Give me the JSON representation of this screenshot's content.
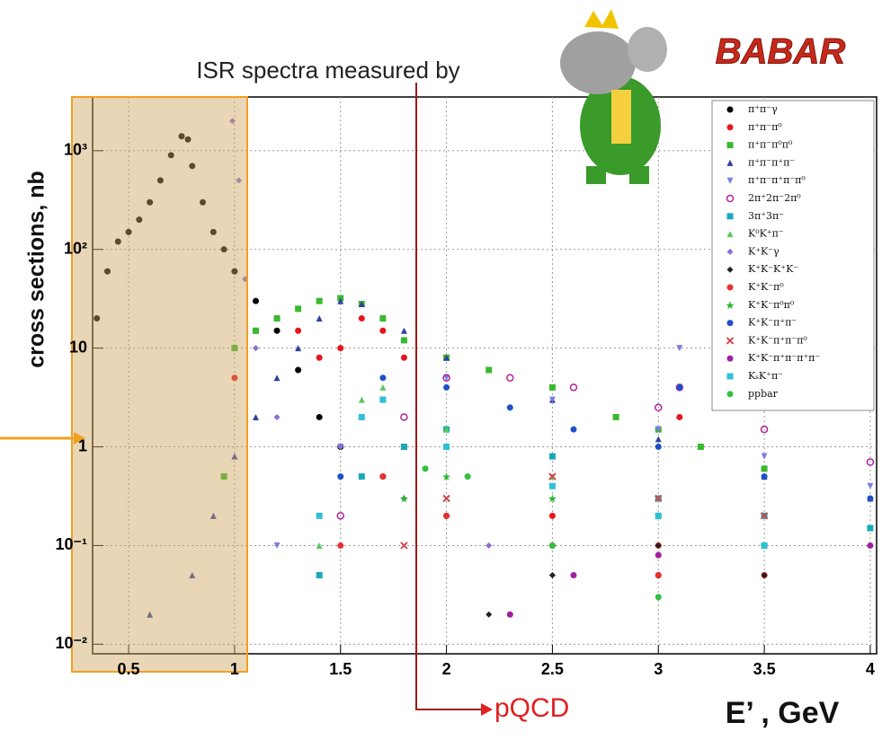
{
  "chart_data": {
    "type": "scatter",
    "title": "ISR spectra measured by",
    "logo": "BABAR",
    "annotation": "pQCD",
    "x_label": "E’ , GeV",
    "y_label": "cross sections, nb",
    "log_y": true,
    "grid": true,
    "xlim": [
      0.33,
      4.03
    ],
    "ylim": [
      0.008,
      3500
    ],
    "xticks": [
      0.5,
      1,
      1.5,
      2,
      2.5,
      3,
      3.5,
      4
    ],
    "yticks": [
      {
        "value": 0.01,
        "label": "10⁻²"
      },
      {
        "value": 0.1,
        "label": "10⁻¹"
      },
      1,
      10,
      {
        "value": 100,
        "label": "10²"
      },
      {
        "value": 1000,
        "label": "10³"
      }
    ],
    "series": [
      {
        "name": "π⁺π⁻γ",
        "color": "#000000",
        "marker": "circle",
        "x": [
          0.35,
          0.4,
          0.45,
          0.5,
          0.55,
          0.6,
          0.65,
          0.7,
          0.75,
          0.78,
          0.8,
          0.85,
          0.9,
          0.95,
          1.0,
          1.1,
          1.2,
          1.3,
          1.4,
          1.5,
          1.7,
          2.0,
          2.5,
          3.0
        ],
        "values": [
          20,
          60,
          120,
          150,
          200,
          300,
          500,
          900,
          1400,
          1300,
          700,
          300,
          150,
          100,
          60,
          30,
          15,
          6,
          2,
          1,
          0.5,
          0.2,
          0.1,
          0.05
        ]
      },
      {
        "name": "π⁺π⁻π⁰",
        "color": "#e8141c",
        "marker": "circle",
        "x": [
          1.0,
          1.1,
          1.2,
          1.3,
          1.4,
          1.5,
          1.6,
          1.7,
          1.8,
          2.0,
          2.5,
          3.0,
          3.1,
          3.5
        ],
        "values": [
          5,
          15,
          20,
          15,
          8,
          10,
          20,
          15,
          8,
          1,
          0.2,
          0.1,
          2,
          0.05
        ]
      },
      {
        "name": "π⁺π⁻π⁰π⁰",
        "color": "#3ab82e",
        "marker": "square",
        "x": [
          0.95,
          1.0,
          1.1,
          1.2,
          1.3,
          1.4,
          1.5,
          1.6,
          1.7,
          1.8,
          2.0,
          2.2,
          2.5,
          2.8,
          3.0,
          3.2,
          3.5
        ],
        "values": [
          0.5,
          10,
          15,
          20,
          25,
          30,
          32,
          28,
          20,
          12,
          8,
          6,
          4,
          2,
          1.5,
          1.0,
          0.6
        ]
      },
      {
        "name": "π⁺π⁻π⁺π⁻",
        "color": "#3040a0",
        "marker": "triangle",
        "x": [
          0.6,
          0.8,
          0.9,
          1.0,
          1.1,
          1.2,
          1.3,
          1.4,
          1.5,
          1.6,
          1.8,
          2.0,
          2.5,
          3.0,
          3.5,
          4.0
        ],
        "values": [
          0.02,
          0.05,
          0.2,
          0.8,
          2,
          5,
          10,
          20,
          30,
          28,
          15,
          8,
          3,
          1.2,
          0.5,
          0.3
        ]
      },
      {
        "name": "π⁺π⁻π⁺π⁻π⁰",
        "color": "#7b7ee0",
        "marker": "down",
        "x": [
          1.2,
          1.5,
          1.7,
          2.0,
          2.5,
          3.0,
          3.1,
          3.5,
          4.0
        ],
        "values": [
          0.1,
          1,
          3,
          5,
          3,
          1.5,
          10,
          0.8,
          0.4
        ]
      },
      {
        "name": "2π⁺2π⁻2π⁰",
        "color": "#b0209a",
        "marker": "ring",
        "x": [
          1.5,
          1.8,
          2.0,
          2.3,
          2.6,
          3.0,
          3.1,
          3.5,
          4.0
        ],
        "values": [
          0.2,
          2,
          5,
          5,
          4,
          2.5,
          4,
          1.5,
          0.7
        ]
      },
      {
        "name": "3π⁺3π⁻",
        "color": "#1aa8b8",
        "marker": "square",
        "x": [
          1.4,
          1.6,
          1.8,
          2.0,
          2.5,
          3.0,
          3.5,
          4.0
        ],
        "values": [
          0.05,
          0.5,
          1,
          1.5,
          0.8,
          0.3,
          0.2,
          0.15
        ]
      },
      {
        "name": "K⁰K⁺π⁻",
        "color": "#5cc85c",
        "marker": "triangle",
        "x": [
          1.4,
          1.6,
          1.7,
          2.0,
          2.5,
          3.0,
          3.5
        ],
        "values": [
          0.1,
          3,
          4,
          1.5,
          0.5,
          0.2,
          0.1
        ]
      },
      {
        "name": "K⁺K⁻γ",
        "color": "#8a6fd0",
        "marker": "diamond",
        "x": [
          0.99,
          1.02,
          1.05,
          1.1,
          1.2,
          1.5,
          1.8,
          2.2,
          2.5
        ],
        "values": [
          2000,
          500,
          50,
          10,
          2,
          1,
          0.3,
          0.1,
          0.05
        ]
      },
      {
        "name": "K⁺K⁻K⁺K⁻",
        "color": "#222222",
        "marker": "diamond",
        "x": [
          2.2,
          2.5,
          3.0,
          3.5
        ],
        "values": [
          0.02,
          0.05,
          0.1,
          0.05
        ]
      },
      {
        "name": "K⁺K⁻π⁰",
        "color": "#e83030",
        "marker": "circle",
        "x": [
          1.5,
          1.7,
          2.0,
          2.5,
          3.0
        ],
        "values": [
          0.1,
          0.5,
          0.2,
          0.1,
          0.05
        ]
      },
      {
        "name": "K⁺K⁻π⁰π⁰",
        "color": "#28b828",
        "marker": "star",
        "x": [
          1.8,
          2.0,
          2.5,
          3.0,
          3.5
        ],
        "values": [
          0.3,
          0.5,
          0.3,
          0.2,
          0.1
        ]
      },
      {
        "name": "K⁺K⁻π⁺π⁻",
        "color": "#2050c8",
        "marker": "circle",
        "x": [
          1.5,
          1.7,
          2.0,
          2.3,
          2.6,
          3.0,
          3.1,
          3.5,
          4.0
        ],
        "values": [
          0.5,
          5,
          4,
          2.5,
          1.5,
          1,
          4,
          0.5,
          0.3
        ]
      },
      {
        "name": "K⁺K⁻π⁺π⁻π⁰",
        "color": "#d04a4a",
        "marker": "cross",
        "x": [
          1.8,
          2.0,
          2.5,
          3.0,
          3.5
        ],
        "values": [
          0.1,
          0.3,
          0.5,
          0.3,
          0.2
        ]
      },
      {
        "name": "K⁺K⁻π⁺π⁻π⁺π⁻",
        "color": "#a020a0",
        "marker": "circle",
        "x": [
          2.3,
          2.6,
          3.0,
          3.5,
          4.0
        ],
        "values": [
          0.02,
          0.05,
          0.08,
          0.1,
          0.1
        ]
      },
      {
        "name": "KₛK⁺π⁻",
        "color": "#30c0d8",
        "marker": "square",
        "x": [
          1.4,
          1.6,
          1.7,
          2.0,
          2.5,
          3.0,
          3.5
        ],
        "values": [
          0.2,
          2,
          3,
          1,
          0.4,
          0.2,
          0.1
        ]
      },
      {
        "name": "ppbar",
        "color": "#30c040",
        "marker": "circle",
        "x": [
          1.9,
          2.1,
          2.5,
          3.0
        ],
        "values": [
          0.6,
          0.5,
          0.1,
          0.03
        ]
      }
    ]
  }
}
